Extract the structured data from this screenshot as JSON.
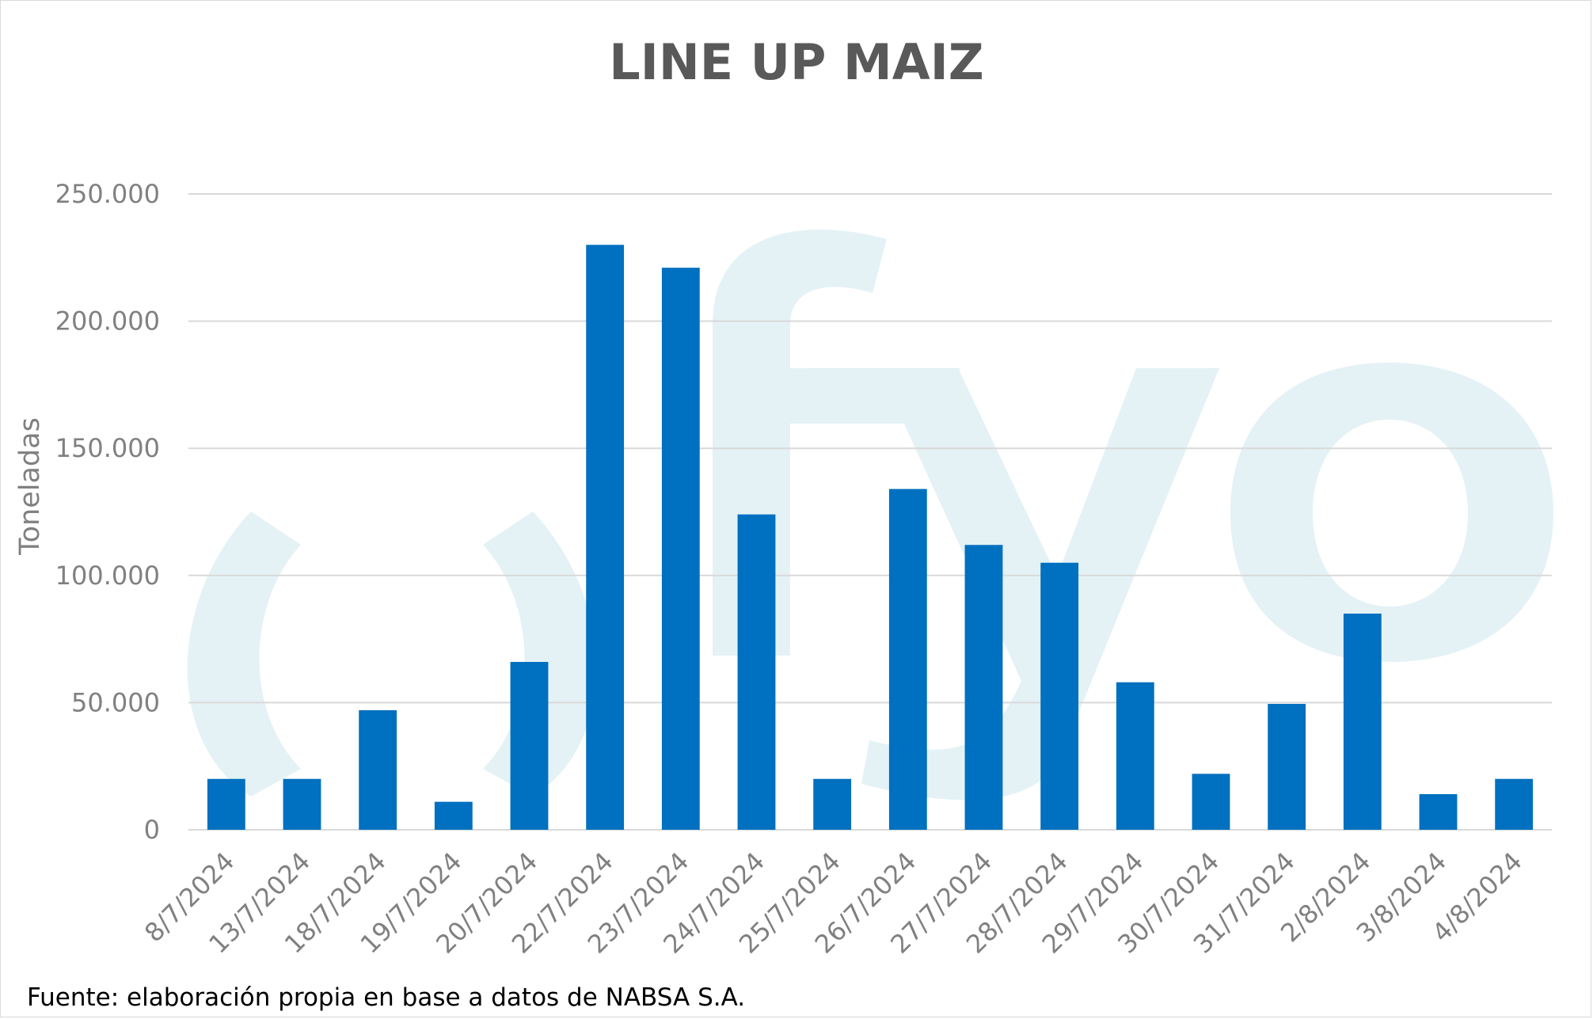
{
  "chart_data": {
    "type": "bar",
    "title": "LINE UP MAIZ",
    "xlabel": "",
    "ylabel": "Toneladas",
    "ylim": [
      0,
      250000
    ],
    "yticks": [
      "0",
      "50.000",
      "100.000",
      "150.000",
      "200.000",
      "250.000"
    ],
    "categories": [
      "8/7/2024",
      "13/7/2024",
      "18/7/2024",
      "19/7/2024",
      "20/7/2024",
      "22/7/2024",
      "23/7/2024",
      "24/7/2024",
      "25/7/2024",
      "26/7/2024",
      "27/7/2024",
      "28/7/2024",
      "29/7/2024",
      "30/7/2024",
      "31/7/2024",
      "2/8/2024",
      "3/8/2024",
      "4/8/2024"
    ],
    "values": [
      20000,
      20000,
      47000,
      11000,
      66000,
      230000,
      221000,
      124000,
      20000,
      134000,
      112000,
      105000,
      58000,
      22000,
      49500,
      85000,
      14000,
      20000
    ],
    "bar_color": "#0070c0",
    "grid": true,
    "gridline_color": "#d9d9d9",
    "legend": "none"
  },
  "source_note": "Fuente: elaboración propia en base a datos de NABSA S.A."
}
